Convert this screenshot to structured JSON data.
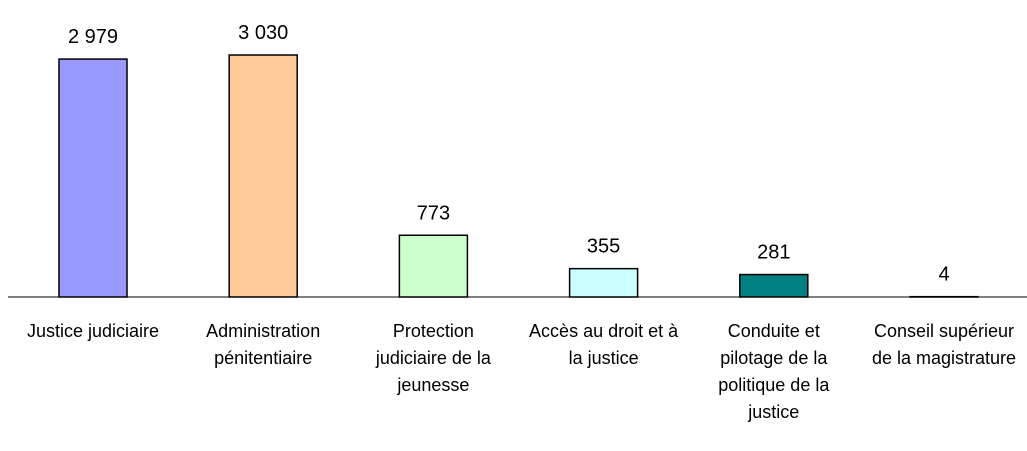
{
  "chart_data": {
    "type": "bar",
    "categories": [
      "Justice judiciaire",
      "Administration pénitentiaire",
      "Protection judiciaire de la jeunesse",
      "Accès au droit et à la justice",
      "Conduite et pilotage de la politique de la justice",
      "Conseil supérieur de la magistrature"
    ],
    "values": [
      2979,
      3030,
      773,
      355,
      281,
      4
    ],
    "value_labels": [
      "2 979",
      "3 030",
      "773",
      "355",
      "281",
      "4"
    ],
    "colors": [
      "#9999ff",
      "#ffcc99",
      "#ccffcc",
      "#ccffff",
      "#008080",
      "#000000"
    ]
  }
}
